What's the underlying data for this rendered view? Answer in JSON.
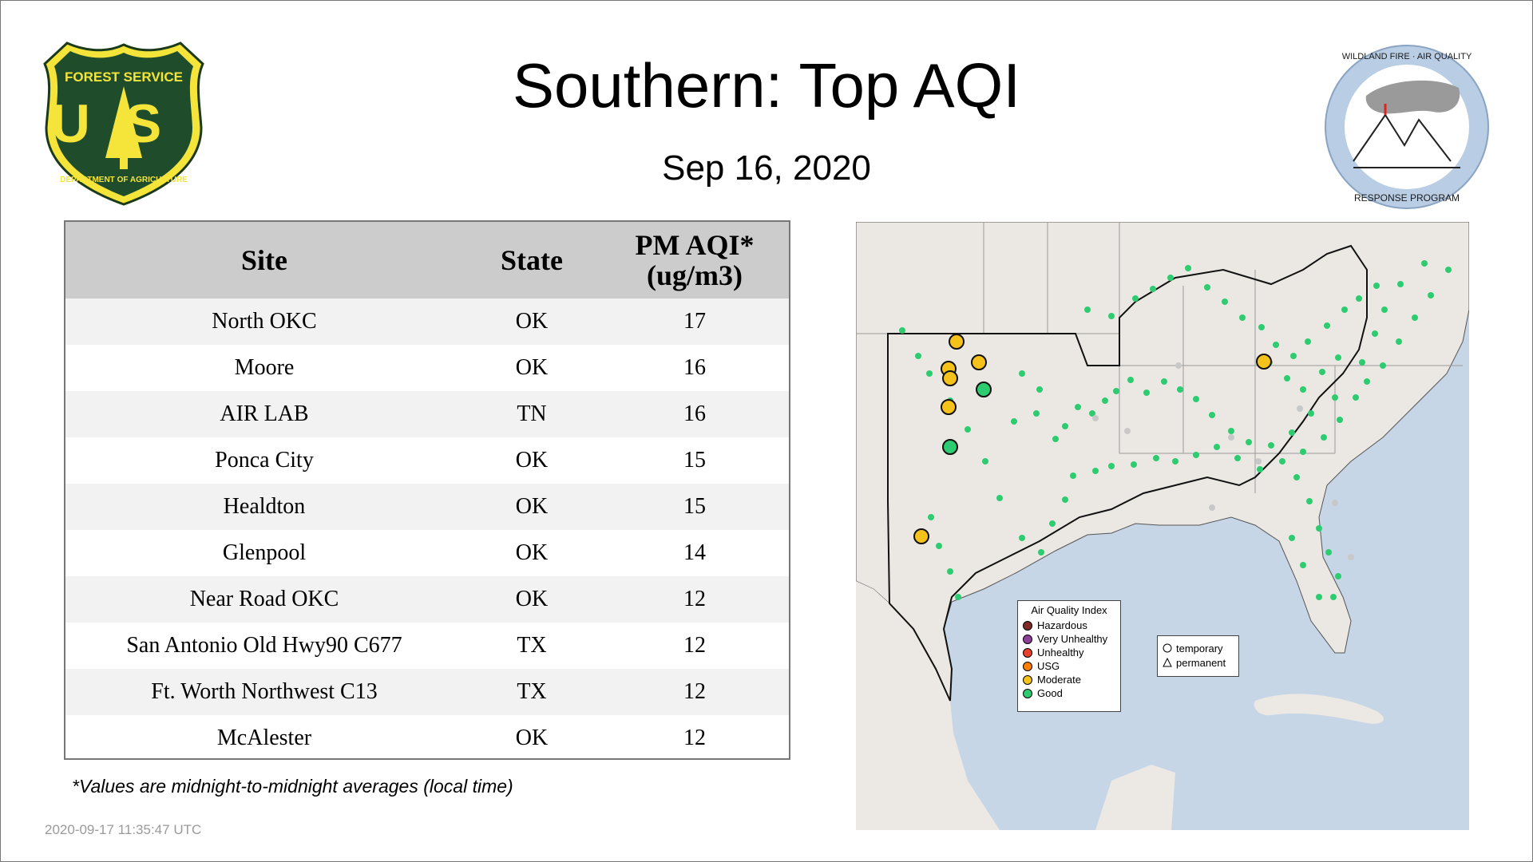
{
  "header": {
    "title": "Southern: Top AQI",
    "date": "Sep 16, 2020"
  },
  "logos": {
    "left": {
      "name": "usfs-shield-logo",
      "text_top": "FOREST SERVICE",
      "text_mid": "US",
      "text_bottom": "DEPARTMENT OF AGRICULTURE"
    },
    "right": {
      "name": "wildland-fire-air-quality-logo",
      "text_top": "WILDLAND FIRE · AIR QUALITY",
      "text_bottom": "RESPONSE PROGRAM"
    }
  },
  "table": {
    "headers": {
      "site": "Site",
      "state": "State",
      "aqi_line1": "PM AQI*",
      "aqi_line2": "(ug/m3)"
    },
    "rows": [
      {
        "site": "North OKC",
        "state": "OK",
        "value": "17"
      },
      {
        "site": "Moore",
        "state": "OK",
        "value": "16"
      },
      {
        "site": "AIR LAB",
        "state": "TN",
        "value": "16"
      },
      {
        "site": "Ponca City",
        "state": "OK",
        "value": "15"
      },
      {
        "site": "Healdton",
        "state": "OK",
        "value": "15"
      },
      {
        "site": "Glenpool",
        "state": "OK",
        "value": "14"
      },
      {
        "site": "Near Road OKC",
        "state": "OK",
        "value": "12"
      },
      {
        "site": "San Antonio Old Hwy90 C677",
        "state": "TX",
        "value": "12"
      },
      {
        "site": "Ft. Worth Northwest C13",
        "state": "TX",
        "value": "12"
      },
      {
        "site": "McAlester",
        "state": "OK",
        "value": "12"
      }
    ]
  },
  "footnote": "*Values are midnight-to-midnight averages (local time)",
  "timestamp": "2020-09-17 11:35:47 UTC",
  "map": {
    "legend": {
      "title": "Air Quality Index",
      "items": [
        {
          "label": "Hazardous",
          "color": "#7e2a2a"
        },
        {
          "label": "Very Unhealthy",
          "color": "#8f3f97"
        },
        {
          "label": "Unhealthy",
          "color": "#e8412b"
        },
        {
          "label": "USG",
          "color": "#ff7e00"
        },
        {
          "label": "Moderate",
          "color": "#f5c21b"
        },
        {
          "label": "Good",
          "color": "#2ecc71"
        }
      ]
    },
    "shapes": {
      "temporary": "temporary",
      "permanent": "permanent"
    },
    "colors": {
      "water": "#c6d6e6",
      "land": "#ebe8e4",
      "good": "#2ecc71",
      "moderate": "#f5c21b",
      "inactive": "#c8c8c8"
    }
  }
}
